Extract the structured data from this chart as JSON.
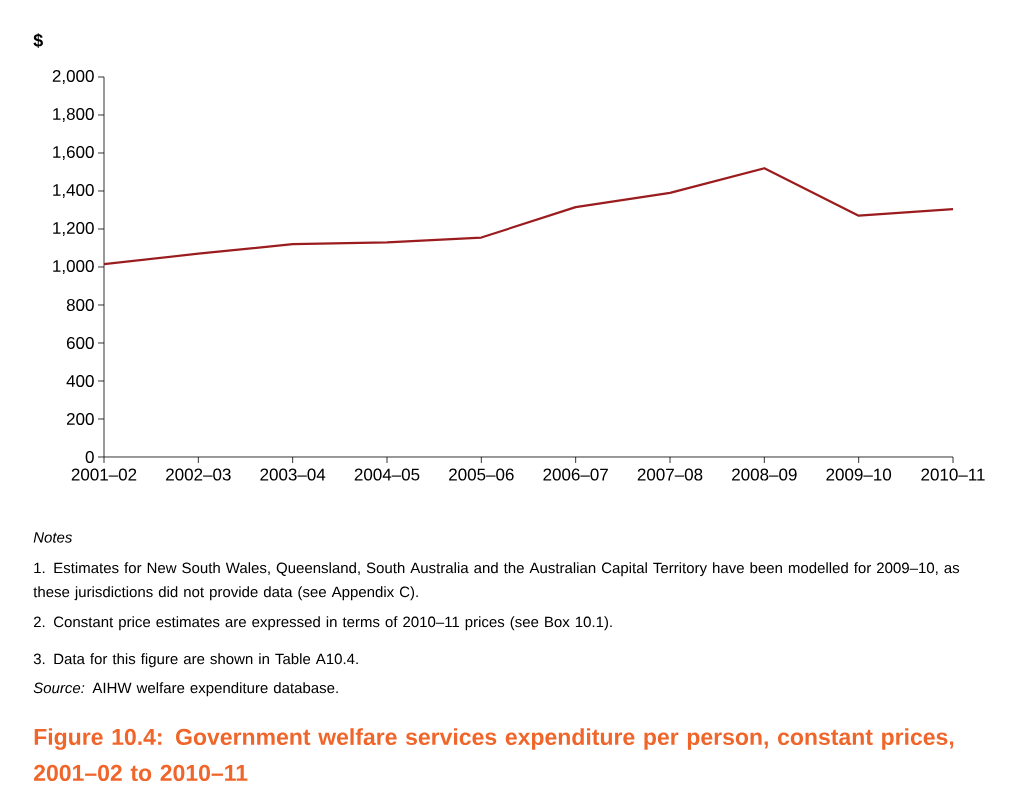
{
  "chart_data": {
    "type": "line",
    "title": "Figure 10.4: Government welfare services expenditure per person, constant prices, 2001–02 to 2010–11",
    "ylabel": "$",
    "categories": [
      "2001–02",
      "2002–03",
      "2003–04",
      "2004–05",
      "2005–06",
      "2006–07",
      "2007–08",
      "2008–09",
      "2009–10",
      "2010–11"
    ],
    "series": [
      {
        "color": "#9b1c1f",
        "values": [
          1015,
          1070,
          1120,
          1130,
          1155,
          1315,
          1390,
          1520,
          1270,
          1305
        ]
      }
    ],
    "ylim": [
      0,
      2000
    ],
    "yticks": [
      0,
      200,
      400,
      600,
      800,
      {
        "value": 1000,
        "label": "1,000"
      },
      {
        "value": 1200,
        "label": "1,200"
      },
      {
        "value": 1400,
        "label": "1,400"
      },
      {
        "value": 1600,
        "label": "1,600"
      },
      {
        "value": 1800,
        "label": "1,800"
      },
      {
        "value": 2000,
        "label": "2,000"
      }
    ],
    "grid": false,
    "marker": "none",
    "line_style": "solid",
    "annotations": [
      "*Notes*",
      "1. Estimates for New South Wales, Queensland, South Australia and the Australian Capital Territory have been modelled for 2009–10, as these jurisdictions did not provide data (see Appendix C).",
      "2. Constant price estimates are expressed in terms of 2010–11 prices (see Box 10.1).",
      "3. Data for this figure are shown in Table A10.4.",
      "*Source:* AIHW welfare expenditure database."
    ]
  }
}
